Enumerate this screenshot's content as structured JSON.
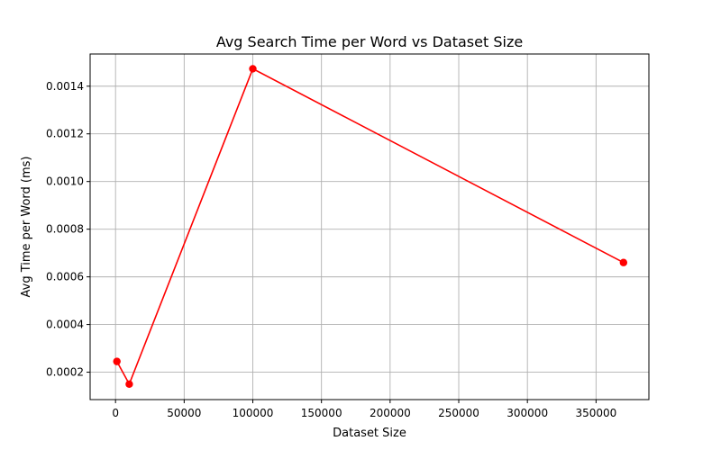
{
  "chart_data": {
    "type": "line",
    "title": "Avg Search Time per Word vs Dataset Size",
    "xlabel": "Dataset Size",
    "ylabel": "Avg Time per Word (ms)",
    "xlim": [
      -18500,
      388500
    ],
    "ylim": [
      8.5e-05,
      0.001535
    ],
    "xticks": [
      0,
      50000,
      100000,
      150000,
      200000,
      250000,
      300000,
      350000
    ],
    "xtick_labels": [
      "0",
      "50000",
      "100000",
      "150000",
      "200000",
      "250000",
      "300000",
      "350000"
    ],
    "yticks": [
      0.0002,
      0.0004,
      0.0006,
      0.0008,
      0.001,
      0.0012,
      0.0014
    ],
    "ytick_labels": [
      "0.0002",
      "0.0004",
      "0.0006",
      "0.0008",
      "0.0010",
      "0.0012",
      "0.0014"
    ],
    "grid": true,
    "series": [
      {
        "color": "#ff0000",
        "marker": "circle",
        "x": [
          1000,
          10000,
          100000,
          370000
        ],
        "y": [
          0.000245,
          0.00015,
          0.001473,
          0.00066
        ]
      }
    ]
  }
}
